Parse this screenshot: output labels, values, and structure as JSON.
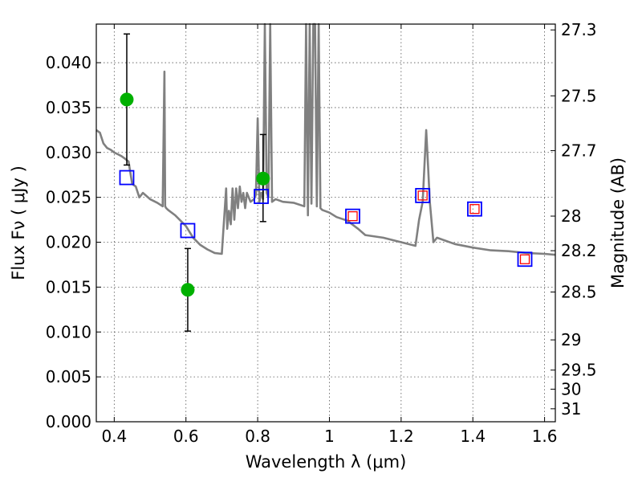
{
  "chart_data": {
    "type": "scatter",
    "title": "",
    "xlabel": "Wavelength  λ (μm)",
    "ylabel": "Flux  Fν  ( μJy )",
    "y2label": "Magnitude (AB)",
    "xlim": [
      0.35,
      1.63
    ],
    "ylim": [
      0.0,
      0.0443
    ],
    "grid": true,
    "x_ticks": [
      0.4,
      0.6,
      0.8,
      1.0,
      1.2,
      1.4,
      1.6
    ],
    "x_tick_labels": [
      "0.4",
      "0.6",
      "0.8",
      "1",
      "1.2",
      "1.4",
      "1.6"
    ],
    "y_ticks": [
      0.0,
      0.005,
      0.01,
      0.015,
      0.02,
      0.025,
      0.03,
      0.035,
      0.04
    ],
    "y_tick_labels": [
      "0.000",
      "0.005",
      "0.010",
      "0.015",
      "0.020",
      "0.025",
      "0.030",
      "0.035",
      "0.040"
    ],
    "y2_ticks": [
      27.3,
      27.5,
      27.7,
      28,
      28.2,
      28.5,
      29,
      29.5,
      30,
      31
    ],
    "y2_tick_labels": [
      "27.3",
      "27.5",
      "27.7",
      "28",
      "28.2",
      "28.5",
      "29",
      "29.5",
      "30",
      "31"
    ],
    "colors": {
      "model": "#808080",
      "observed": "#00b000",
      "errorbar": "#000000",
      "model_phot": "#0000ff",
      "model_phot_inner": "#ff0000",
      "grid": "#555555"
    },
    "series": [
      {
        "kind": "model-spectrum",
        "x": [
          0.35,
          0.36,
          0.37,
          0.38,
          0.39,
          0.4,
          0.41,
          0.42,
          0.43,
          0.44,
          0.45,
          0.46,
          0.47,
          0.48,
          0.5,
          0.52,
          0.535,
          0.54,
          0.542,
          0.545,
          0.55,
          0.57,
          0.6,
          0.62,
          0.64,
          0.66,
          0.68,
          0.7,
          0.712,
          0.715,
          0.72,
          0.725,
          0.73,
          0.735,
          0.74,
          0.745,
          0.75,
          0.755,
          0.76,
          0.765,
          0.77,
          0.78,
          0.79,
          0.795,
          0.8,
          0.805,
          0.81,
          0.815,
          0.82,
          0.825,
          0.83,
          0.835,
          0.84,
          0.85,
          0.87,
          0.9,
          0.93,
          0.935,
          0.94,
          0.945,
          0.95,
          0.955,
          0.96,
          0.965,
          0.97,
          0.975,
          0.98,
          1.0,
          1.02,
          1.05,
          1.08,
          1.1,
          1.15,
          1.2,
          1.24,
          1.25,
          1.26,
          1.265,
          1.27,
          1.275,
          1.28,
          1.29,
          1.3,
          1.35,
          1.4,
          1.45,
          1.5,
          1.55,
          1.6,
          1.63
        ],
        "y": [
          0.0325,
          0.0322,
          0.031,
          0.0305,
          0.0303,
          0.03,
          0.0298,
          0.0296,
          0.0293,
          0.029,
          0.0265,
          0.0262,
          0.025,
          0.0255,
          0.0248,
          0.0244,
          0.024,
          0.039,
          0.024,
          0.0238,
          0.0236,
          0.023,
          0.0218,
          0.0205,
          0.0197,
          0.0192,
          0.0188,
          0.0187,
          0.026,
          0.0215,
          0.0235,
          0.022,
          0.026,
          0.0225,
          0.026,
          0.0238,
          0.0262,
          0.0245,
          0.0255,
          0.0238,
          0.0255,
          0.0245,
          0.0248,
          0.0253,
          0.0338,
          0.0245,
          0.0255,
          0.0248,
          0.0443,
          0.0255,
          0.025,
          0.0443,
          0.0245,
          0.0248,
          0.0245,
          0.0244,
          0.024,
          0.0443,
          0.023,
          0.0443,
          0.0243,
          0.0443,
          0.0443,
          0.024,
          0.0443,
          0.0238,
          0.0236,
          0.0233,
          0.0228,
          0.0224,
          0.0215,
          0.0208,
          0.0205,
          0.02,
          0.0196,
          0.0225,
          0.0245,
          0.0285,
          0.0325,
          0.0285,
          0.0245,
          0.02,
          0.0205,
          0.0198,
          0.0194,
          0.0191,
          0.019,
          0.0188,
          0.0187,
          0.0186
        ]
      },
      {
        "kind": "observed",
        "x": [
          0.435,
          0.605,
          0.815
        ],
        "y": [
          0.0359,
          0.0147,
          0.0271
        ],
        "yerr_low": [
          0.0286,
          0.0101,
          0.0223
        ],
        "yerr_high": [
          0.0432,
          0.0193,
          0.032
        ]
      },
      {
        "kind": "model-photometry",
        "x": [
          0.435,
          0.605,
          0.81,
          1.065,
          1.26,
          1.405,
          1.545
        ],
        "y": [
          0.0272,
          0.0213,
          0.0251,
          0.0229,
          0.0252,
          0.0237,
          0.0181
        ],
        "inner": [
          false,
          false,
          false,
          true,
          true,
          true,
          true
        ]
      }
    ]
  }
}
